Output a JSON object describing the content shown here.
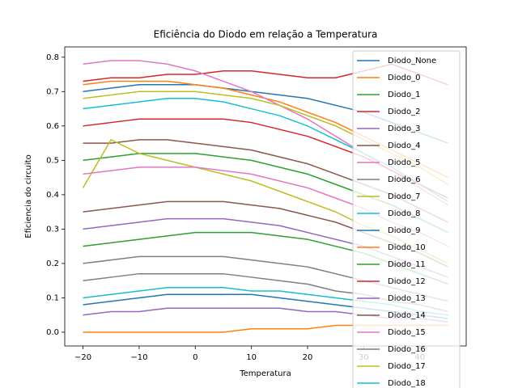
{
  "chart_data": {
    "type": "line",
    "title": "Eficiência do Diodo em relação a Temperatura",
    "xlabel": "Temperatura",
    "ylabel": "Eficiencia do circuito",
    "x": [
      -20,
      -15,
      -10,
      -5,
      0,
      5,
      10,
      15,
      20,
      25,
      30,
      35,
      40,
      45
    ],
    "xlim": [
      -23.25,
      48.25
    ],
    "xticks": [
      {
        "value": -20,
        "label": "−20"
      },
      {
        "value": -10,
        "label": "−10"
      },
      0,
      10,
      20,
      30,
      40
    ],
    "ylim": [
      -0.04,
      0.83
    ],
    "yticks": [
      {
        "value": 0,
        "label": "0.0"
      },
      0.1,
      0.2,
      0.3,
      0.4,
      0.5,
      0.6,
      0.7,
      0.8
    ],
    "legend": "upper right",
    "series": [
      {
        "name": "Diodo_None",
        "color": "#1f77b4",
        "values": [
          0.7,
          0.71,
          0.72,
          0.72,
          0.72,
          0.71,
          0.7,
          0.69,
          0.68,
          0.66,
          0.64,
          0.61,
          0.58,
          0.55
        ]
      },
      {
        "name": "Diodo_0",
        "color": "#ff7f0e",
        "values": [
          0.72,
          0.73,
          0.73,
          0.73,
          0.72,
          0.71,
          0.69,
          0.67,
          0.64,
          0.61,
          0.57,
          0.53,
          0.49,
          0.45
        ]
      },
      {
        "name": "Diodo_1",
        "color": "#2ca02c",
        "values": [
          0.5,
          0.51,
          0.52,
          0.52,
          0.52,
          0.51,
          0.5,
          0.48,
          0.46,
          0.43,
          0.4,
          0.37,
          0.33,
          0.29
        ]
      },
      {
        "name": "Diodo_2",
        "color": "#d62728",
        "values": [
          0.73,
          0.74,
          0.74,
          0.75,
          0.75,
          0.76,
          0.76,
          0.75,
          0.74,
          0.74,
          0.76,
          0.78,
          0.75,
          0.72
        ]
      },
      {
        "name": "Diodo_3",
        "color": "#9467bd",
        "values": [
          0.3,
          0.31,
          0.32,
          0.33,
          0.33,
          0.33,
          0.32,
          0.31,
          0.29,
          0.27,
          0.25,
          0.22,
          0.19,
          0.16
        ]
      },
      {
        "name": "Diodo_4",
        "color": "#8c564b",
        "values": [
          0.55,
          0.55,
          0.56,
          0.56,
          0.55,
          0.54,
          0.53,
          0.51,
          0.49,
          0.46,
          0.43,
          0.4,
          0.36,
          0.32
        ]
      },
      {
        "name": "Diodo_5",
        "color": "#e377c2",
        "values": [
          0.78,
          0.79,
          0.79,
          0.78,
          0.76,
          0.73,
          0.7,
          0.66,
          0.62,
          0.57,
          0.52,
          0.47,
          0.42,
          0.37
        ]
      },
      {
        "name": "Diodo_6",
        "color": "#7f7f7f",
        "values": [
          0.15,
          0.16,
          0.17,
          0.17,
          0.17,
          0.17,
          0.16,
          0.15,
          0.14,
          0.12,
          0.11,
          0.09,
          0.08,
          0.06
        ]
      },
      {
        "name": "Diodo_7",
        "color": "#bcbd22",
        "values": [
          0.42,
          0.56,
          0.52,
          0.5,
          0.48,
          0.46,
          0.44,
          0.41,
          0.38,
          0.35,
          0.31,
          0.28,
          0.24,
          0.2
        ]
      },
      {
        "name": "Diodo_8",
        "color": "#17becf",
        "values": [
          0.65,
          0.66,
          0.67,
          0.68,
          0.68,
          0.67,
          0.65,
          0.63,
          0.6,
          0.56,
          0.52,
          0.48,
          0.43,
          0.38
        ]
      },
      {
        "name": "Diodo_9",
        "color": "#1f77b4",
        "values": [
          0.08,
          0.09,
          0.1,
          0.11,
          0.11,
          0.11,
          0.11,
          0.1,
          0.09,
          0.08,
          0.07,
          0.06,
          0.05,
          0.04
        ]
      },
      {
        "name": "Diodo_10",
        "color": "#ff7f0e",
        "values": [
          0.0,
          0.0,
          0.0,
          0.0,
          0.0,
          0.0,
          0.01,
          0.01,
          0.01,
          0.02,
          0.02,
          0.02,
          0.02,
          0.02
        ]
      },
      {
        "name": "Diodo_11",
        "color": "#2ca02c",
        "values": [
          0.25,
          0.26,
          0.27,
          0.28,
          0.29,
          0.29,
          0.29,
          0.28,
          0.27,
          0.25,
          0.23,
          0.2,
          0.17,
          0.14
        ]
      },
      {
        "name": "Diodo_12",
        "color": "#d62728",
        "values": [
          0.6,
          0.61,
          0.62,
          0.62,
          0.62,
          0.62,
          0.61,
          0.59,
          0.57,
          0.54,
          0.51,
          0.47,
          0.43,
          0.39
        ]
      },
      {
        "name": "Diodo_13",
        "color": "#9467bd",
        "values": [
          0.05,
          0.06,
          0.06,
          0.07,
          0.07,
          0.07,
          0.07,
          0.07,
          0.06,
          0.06,
          0.05,
          0.04,
          0.04,
          0.03
        ]
      },
      {
        "name": "Diodo_14",
        "color": "#8c564b",
        "values": [
          0.35,
          0.36,
          0.37,
          0.38,
          0.38,
          0.38,
          0.37,
          0.36,
          0.34,
          0.32,
          0.29,
          0.26,
          0.23,
          0.19
        ]
      },
      {
        "name": "Diodo_15",
        "color": "#e377c2",
        "values": [
          0.46,
          0.47,
          0.48,
          0.48,
          0.48,
          0.47,
          0.46,
          0.44,
          0.42,
          0.39,
          0.36,
          0.32,
          0.29,
          0.25
        ]
      },
      {
        "name": "Diodo_16",
        "color": "#7f7f7f",
        "values": [
          0.2,
          0.21,
          0.22,
          0.22,
          0.22,
          0.22,
          0.21,
          0.2,
          0.19,
          0.17,
          0.15,
          0.13,
          0.11,
          0.09
        ]
      },
      {
        "name": "Diodo_17",
        "color": "#bcbd22",
        "values": [
          0.68,
          0.69,
          0.7,
          0.7,
          0.7,
          0.69,
          0.68,
          0.66,
          0.63,
          0.6,
          0.56,
          0.52,
          0.48,
          0.43
        ]
      },
      {
        "name": "Diodo_18",
        "color": "#17becf",
        "values": [
          0.1,
          0.11,
          0.12,
          0.13,
          0.13,
          0.13,
          0.12,
          0.12,
          0.11,
          0.1,
          0.09,
          0.08,
          0.06,
          0.05
        ]
      }
    ]
  }
}
